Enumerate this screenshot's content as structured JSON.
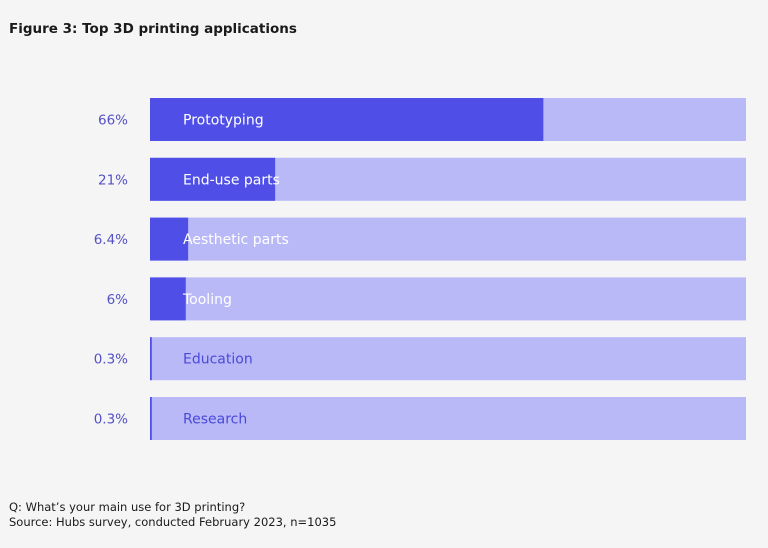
{
  "chart_data": {
    "type": "bar",
    "orientation": "horizontal",
    "title": "Figure 3: Top 3D printing applications",
    "categories": [
      "Prototyping",
      "End-use parts",
      "Aesthetic parts",
      "Tooling",
      "Education",
      "Research"
    ],
    "values": [
      66,
      21,
      6.4,
      6,
      0.3,
      0.3
    ],
    "value_labels": [
      "66%",
      "21%",
      "6.4%",
      "6%",
      "0.3%",
      "0.3%"
    ],
    "xlim": [
      0,
      100
    ],
    "grid": false,
    "colors": {
      "fill": "#4f4fe8",
      "track": "#b9b9f8",
      "value_label": "#5552c4",
      "label_on_dark": "#ffffff",
      "label_on_light": "#4a4ad8"
    }
  },
  "footnote": {
    "question": "Q: What’s your main use for 3D printing?",
    "source": "Source: Hubs survey, conducted February 2023, n=1035"
  }
}
